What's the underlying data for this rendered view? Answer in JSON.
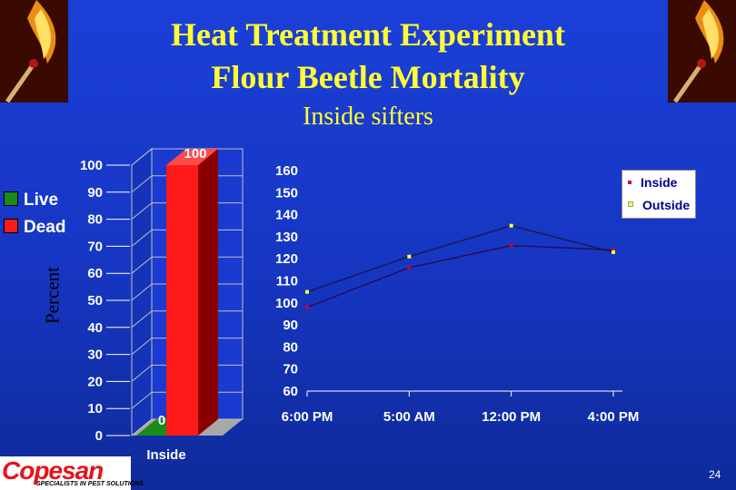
{
  "header": {
    "title_line1": "Heat Treatment Experiment",
    "title_line2": "Flour Beetle Mortality",
    "subtitle": "Inside sifters"
  },
  "footer": {
    "page_number": "24",
    "logo_text": "Copesan",
    "logo_tagline": "SPECIALISTS IN PEST SOLUTIONS"
  },
  "colors": {
    "title": "#ffff33",
    "live": "#1a8a1a",
    "dead": "#ff1a1a",
    "inside_series": "#cc0033",
    "outside_series": "#ffff33"
  },
  "chart_data": [
    {
      "type": "bar",
      "ylabel": "Percent",
      "categories": [
        "Inside"
      ],
      "series": [
        {
          "name": "Live",
          "values": [
            0
          ]
        },
        {
          "name": "Dead",
          "values": [
            100
          ]
        }
      ],
      "data_labels": [
        "0",
        "100"
      ],
      "ylim": [
        0,
        100
      ],
      "yticks": [
        "0",
        "10",
        "20",
        "30",
        "40",
        "50",
        "60",
        "70",
        "80",
        "90",
        "100"
      ],
      "legend_placement": "left",
      "style": "3d-stacked"
    },
    {
      "type": "line",
      "categories": [
        "6:00 PM",
        "5:00 AM",
        "12:00 PM",
        "4:00 PM"
      ],
      "series": [
        {
          "name": "Inside",
          "values": [
            98,
            116,
            126,
            124
          ]
        },
        {
          "name": "Outside",
          "values": [
            105,
            121,
            135,
            123
          ]
        }
      ],
      "ylim": [
        60,
        160
      ],
      "yticks": [
        "60",
        "70",
        "80",
        "90",
        "100",
        "110",
        "120",
        "130",
        "140",
        "150",
        "160"
      ],
      "grid": false,
      "legend_placement": "top-right"
    }
  ]
}
